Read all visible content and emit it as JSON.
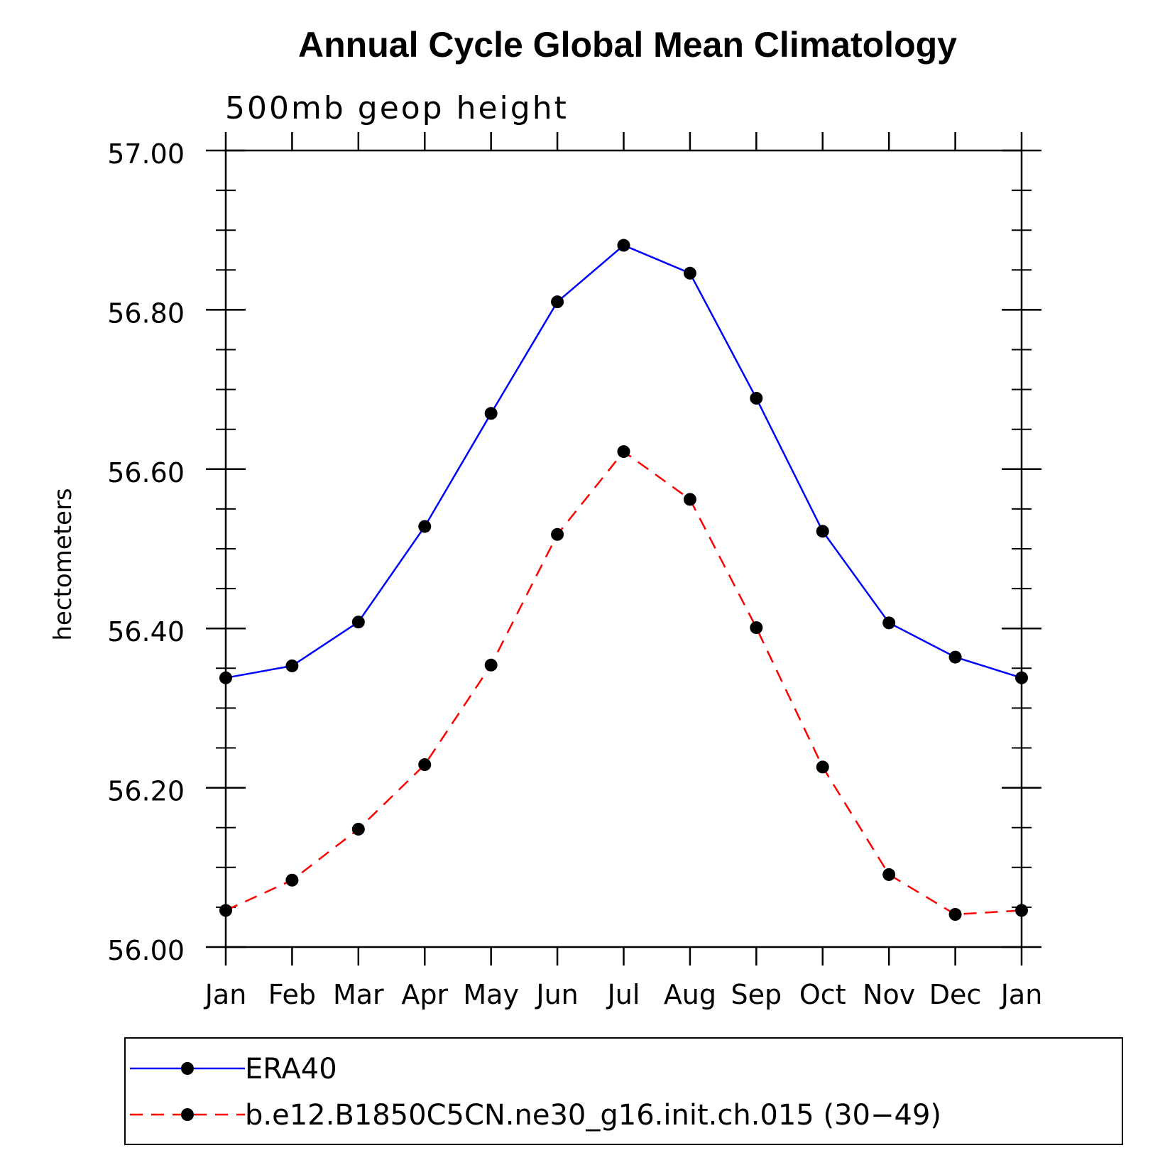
{
  "chart_data": {
    "type": "line",
    "title": "Annual Cycle Global Mean Climatology",
    "subtitle": "500mb geop height",
    "xlabel": "",
    "ylabel": "hectometers",
    "categories": [
      "Jan",
      "Feb",
      "Mar",
      "Apr",
      "May",
      "Jun",
      "Jul",
      "Aug",
      "Sep",
      "Oct",
      "Nov",
      "Dec",
      "Jan"
    ],
    "ylim": [
      56.0,
      57.0
    ],
    "yticks": [
      "56.00",
      "56.20",
      "56.40",
      "56.60",
      "56.80",
      "57.00"
    ],
    "grid": false,
    "legend_position": "bottom",
    "series": [
      {
        "name": "ERA40",
        "color": "#0000ff",
        "line_style": "solid",
        "marker": "circle",
        "values": [
          56.338,
          56.353,
          56.408,
          56.528,
          56.67,
          56.81,
          56.881,
          56.846,
          56.689,
          56.522,
          56.407,
          56.364,
          56.338
        ]
      },
      {
        "name": "b.e12.B1850C5CN.ne30_g16.init.ch.015 (30−49)",
        "color": "#ff0000",
        "line_style": "dashed",
        "marker": "circle",
        "values": [
          56.046,
          56.084,
          56.148,
          56.229,
          56.354,
          56.518,
          56.622,
          56.562,
          56.401,
          56.226,
          56.091,
          56.041,
          56.046
        ]
      }
    ]
  }
}
